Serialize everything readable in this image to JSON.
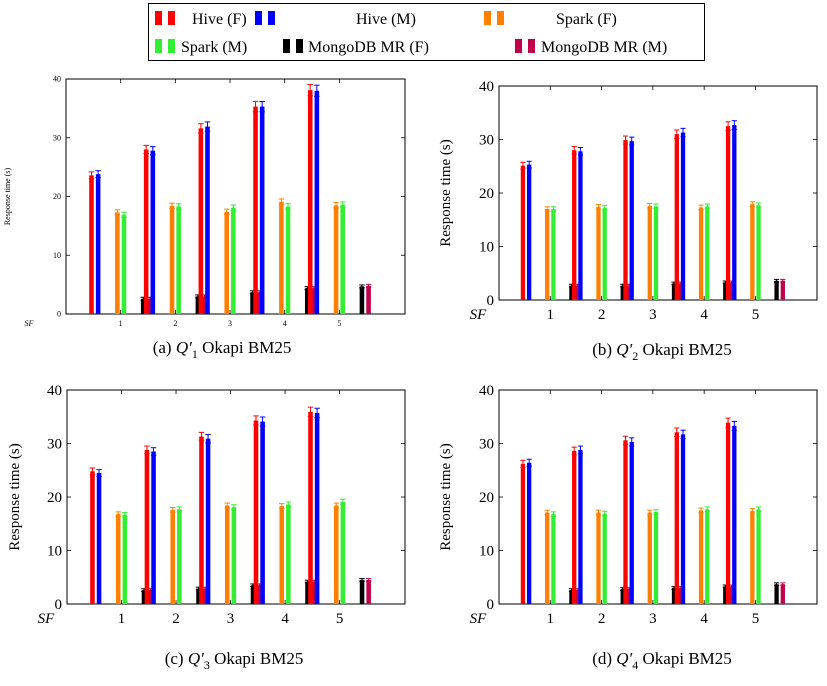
{
  "legend": {
    "entries": [
      {
        "name": "Hive (F)",
        "color": "#ff0000"
      },
      {
        "name": "Hive (M)",
        "color": "#0000ff"
      },
      {
        "name": "Spark (F)",
        "color": "#ff8000"
      },
      {
        "name": "Spark (M)",
        "color": "#33ee33"
      },
      {
        "name": "MongoDB MR (F)",
        "color": "#000000"
      },
      {
        "name": "MongoDB MR (M)",
        "color": "#c0004a"
      }
    ]
  },
  "chart_data": [
    {
      "type": "bar",
      "caption": "(a) Q′1 Okapi BM25",
      "x_axis_label": "SF",
      "ylabel": "Response time (s)",
      "ylim": [
        0,
        40
      ],
      "yticks": [
        0,
        10,
        20,
        30,
        40
      ],
      "categories": [
        "1",
        "2",
        "3",
        "4",
        "5"
      ],
      "series": [
        {
          "name": "Hive (F)",
          "values": [
            23.6,
            28.0,
            31.6,
            35.3,
            38.1
          ]
        },
        {
          "name": "Hive (M)",
          "values": [
            23.8,
            27.8,
            31.9,
            35.3,
            38.0
          ]
        },
        {
          "name": "Spark (F)",
          "values": [
            17.3,
            18.4,
            17.4,
            19.1,
            18.5
          ]
        },
        {
          "name": "Spark (M)",
          "values": [
            16.9,
            18.3,
            18.1,
            18.3,
            18.6
          ]
        },
        {
          "name": "MongoDB MR (F)",
          "values": [
            2.6,
            3.0,
            3.7,
            4.4,
            4.7
          ]
        },
        {
          "name": "MongoDB MR (M)",
          "values": [
            2.6,
            3.0,
            3.7,
            4.4,
            4.8
          ]
        }
      ]
    },
    {
      "type": "bar",
      "caption": "(b) Q′2 Okapi BM25",
      "x_axis_label": "SF",
      "ylabel": "Response time (s)",
      "ylim": [
        0,
        40
      ],
      "yticks": [
        0,
        10,
        20,
        30,
        40
      ],
      "categories": [
        "1",
        "2",
        "3",
        "4",
        "5"
      ],
      "series": [
        {
          "name": "Hive (F)",
          "values": [
            25.1,
            28.0,
            29.9,
            31.0,
            32.5
          ]
        },
        {
          "name": "Hive (M)",
          "values": [
            25.3,
            27.8,
            29.7,
            31.3,
            32.7
          ]
        },
        {
          "name": "Spark (F)",
          "values": [
            17.0,
            17.4,
            17.6,
            17.3,
            17.9
          ]
        },
        {
          "name": "Spark (M)",
          "values": [
            17.0,
            17.2,
            17.5,
            17.5,
            17.7
          ]
        },
        {
          "name": "MongoDB MR (F)",
          "values": [
            2.7,
            2.7,
            3.1,
            3.3,
            3.6
          ]
        },
        {
          "name": "MongoDB MR (M)",
          "values": [
            2.7,
            2.7,
            3.1,
            3.3,
            3.6
          ]
        }
      ]
    },
    {
      "type": "bar",
      "caption": "(c) Q′3 Okapi BM25",
      "x_axis_label": "SF",
      "ylabel": "Response time (s)",
      "ylim": [
        0,
        40
      ],
      "yticks": [
        0,
        10,
        20,
        30,
        40
      ],
      "categories": [
        "1",
        "2",
        "3",
        "4",
        "5"
      ],
      "series": [
        {
          "name": "Hive (F)",
          "values": [
            24.8,
            28.8,
            31.3,
            34.3,
            35.9
          ]
        },
        {
          "name": "Hive (M)",
          "values": [
            24.5,
            28.5,
            30.9,
            34.1,
            35.7
          ]
        },
        {
          "name": "Spark (F)",
          "values": [
            16.8,
            17.6,
            18.4,
            18.3,
            18.4
          ]
        },
        {
          "name": "Spark (M)",
          "values": [
            16.7,
            17.7,
            18.1,
            18.6,
            19.1
          ]
        },
        {
          "name": "MongoDB MR (F)",
          "values": [
            2.6,
            2.9,
            3.5,
            4.2,
            4.5
          ]
        },
        {
          "name": "MongoDB MR (M)",
          "values": [
            2.6,
            2.9,
            3.5,
            4.2,
            4.5
          ]
        }
      ]
    },
    {
      "type": "bar",
      "caption": "(d) Q′4 Okapi BM25",
      "x_axis_label": "SF",
      "ylabel": "Response time (s)",
      "ylim": [
        0,
        40
      ],
      "yticks": [
        0,
        10,
        20,
        30,
        40
      ],
      "categories": [
        "1",
        "2",
        "3",
        "4",
        "5"
      ],
      "series": [
        {
          "name": "Hive (F)",
          "values": [
            26.2,
            28.6,
            30.6,
            32.1,
            33.9
          ]
        },
        {
          "name": "Hive (M)",
          "values": [
            26.4,
            28.8,
            30.3,
            31.7,
            33.3
          ]
        },
        {
          "name": "Spark (F)",
          "values": [
            17.1,
            17.1,
            17.1,
            17.5,
            17.4
          ]
        },
        {
          "name": "Spark (M)",
          "values": [
            16.8,
            16.9,
            17.2,
            17.7,
            17.7
          ]
        },
        {
          "name": "MongoDB MR (F)",
          "values": [
            2.6,
            2.8,
            3.0,
            3.3,
            3.7
          ]
        },
        {
          "name": "MongoDB MR (M)",
          "values": [
            2.6,
            2.8,
            3.0,
            3.3,
            3.7
          ]
        }
      ]
    }
  ]
}
